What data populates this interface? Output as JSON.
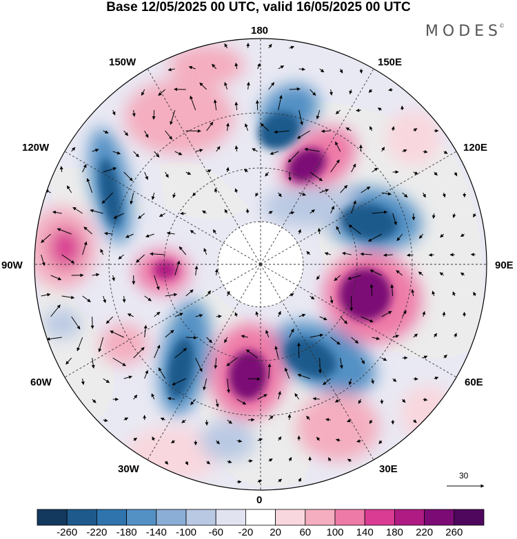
{
  "title": "Base 12/05/2025 00 UTC, valid 16/05/2025 00 UTC",
  "brand": "MODES",
  "brand_mark": "©",
  "longitude_labels": {
    "l180": "180",
    "l150e": "150E",
    "l120e": "120E",
    "l90e": "90E",
    "l60e": "60E",
    "l30e": "30E",
    "l0": "0",
    "l30w": "30W",
    "l60w": "60W",
    "l90w": "90W",
    "l120w": "120W",
    "l150w": "150W"
  },
  "reference_vector": "30",
  "colorbar": {
    "ticks": [
      "-260",
      "-220",
      "-180",
      "-140",
      "-100",
      "-60",
      "-20",
      "20",
      "60",
      "100",
      "140",
      "180",
      "220",
      "260"
    ],
    "colors": [
      "#14395e",
      "#1e5a8c",
      "#2f74ad",
      "#5390c4",
      "#8aaed6",
      "#bac9e3",
      "#e2e3f1",
      "#ffffff",
      "#f9d7de",
      "#f4aec0",
      "#ee7aa7",
      "#d93c92",
      "#b01b83",
      "#7c0b76",
      "#4f075e"
    ]
  },
  "map": {
    "projection": "north polar stereographic",
    "land_color": "#ececec",
    "pole_region_color": "#ffffff",
    "anomalies": [
      {
        "label": "positive",
        "value": 260
      },
      {
        "label": "negative",
        "value": -220
      }
    ]
  }
}
